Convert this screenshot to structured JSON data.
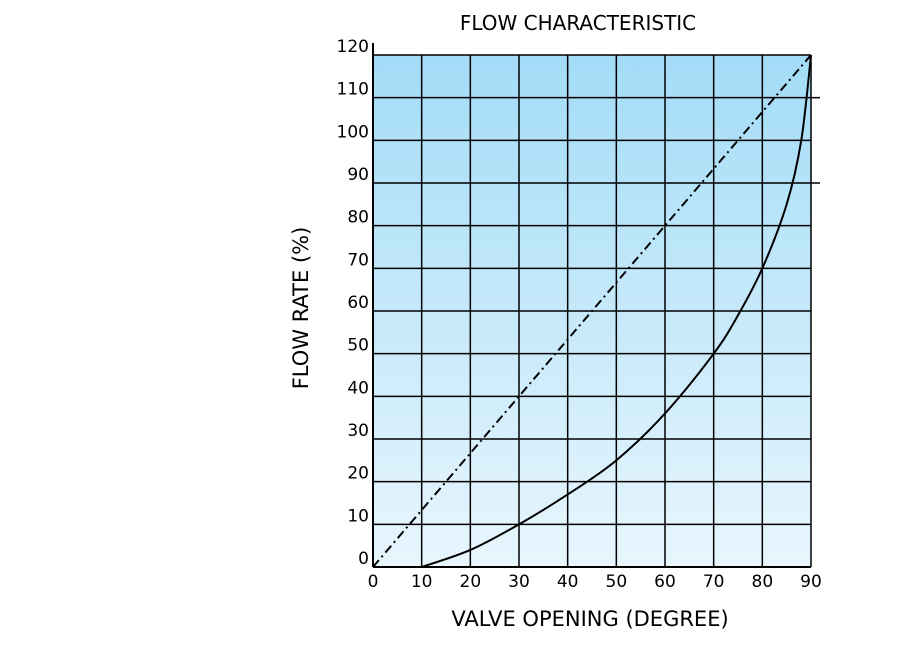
{
  "chart_data": {
    "type": "line",
    "title": "FLOW CHARACTERISTIC",
    "xlabel": "VALVE OPENING (DEGREE)",
    "ylabel": "FLOW RATE (%)",
    "xlim": [
      0,
      90
    ],
    "ylim": [
      0,
      120
    ],
    "xticks": [
      0,
      10,
      20,
      30,
      40,
      50,
      60,
      70,
      80,
      90
    ],
    "yticks": [
      0,
      10,
      20,
      30,
      40,
      50,
      60,
      70,
      80,
      90,
      100,
      110,
      120
    ],
    "grid": true,
    "background_gradient": [
      "#e8f6fd",
      "#a3dcf7"
    ],
    "series": [
      {
        "style": "dashed",
        "color": "#000000",
        "points": [
          [
            0,
            0
          ],
          [
            90,
            120
          ]
        ]
      },
      {
        "style": "solid",
        "color": "#000000",
        "points": [
          [
            10,
            0
          ],
          [
            20,
            4
          ],
          [
            30,
            10
          ],
          [
            40,
            17
          ],
          [
            50,
            25
          ],
          [
            60,
            36
          ],
          [
            70,
            50
          ],
          [
            75,
            59
          ],
          [
            80,
            70
          ],
          [
            85,
            85
          ],
          [
            88,
            100
          ],
          [
            90,
            120
          ]
        ]
      }
    ]
  }
}
